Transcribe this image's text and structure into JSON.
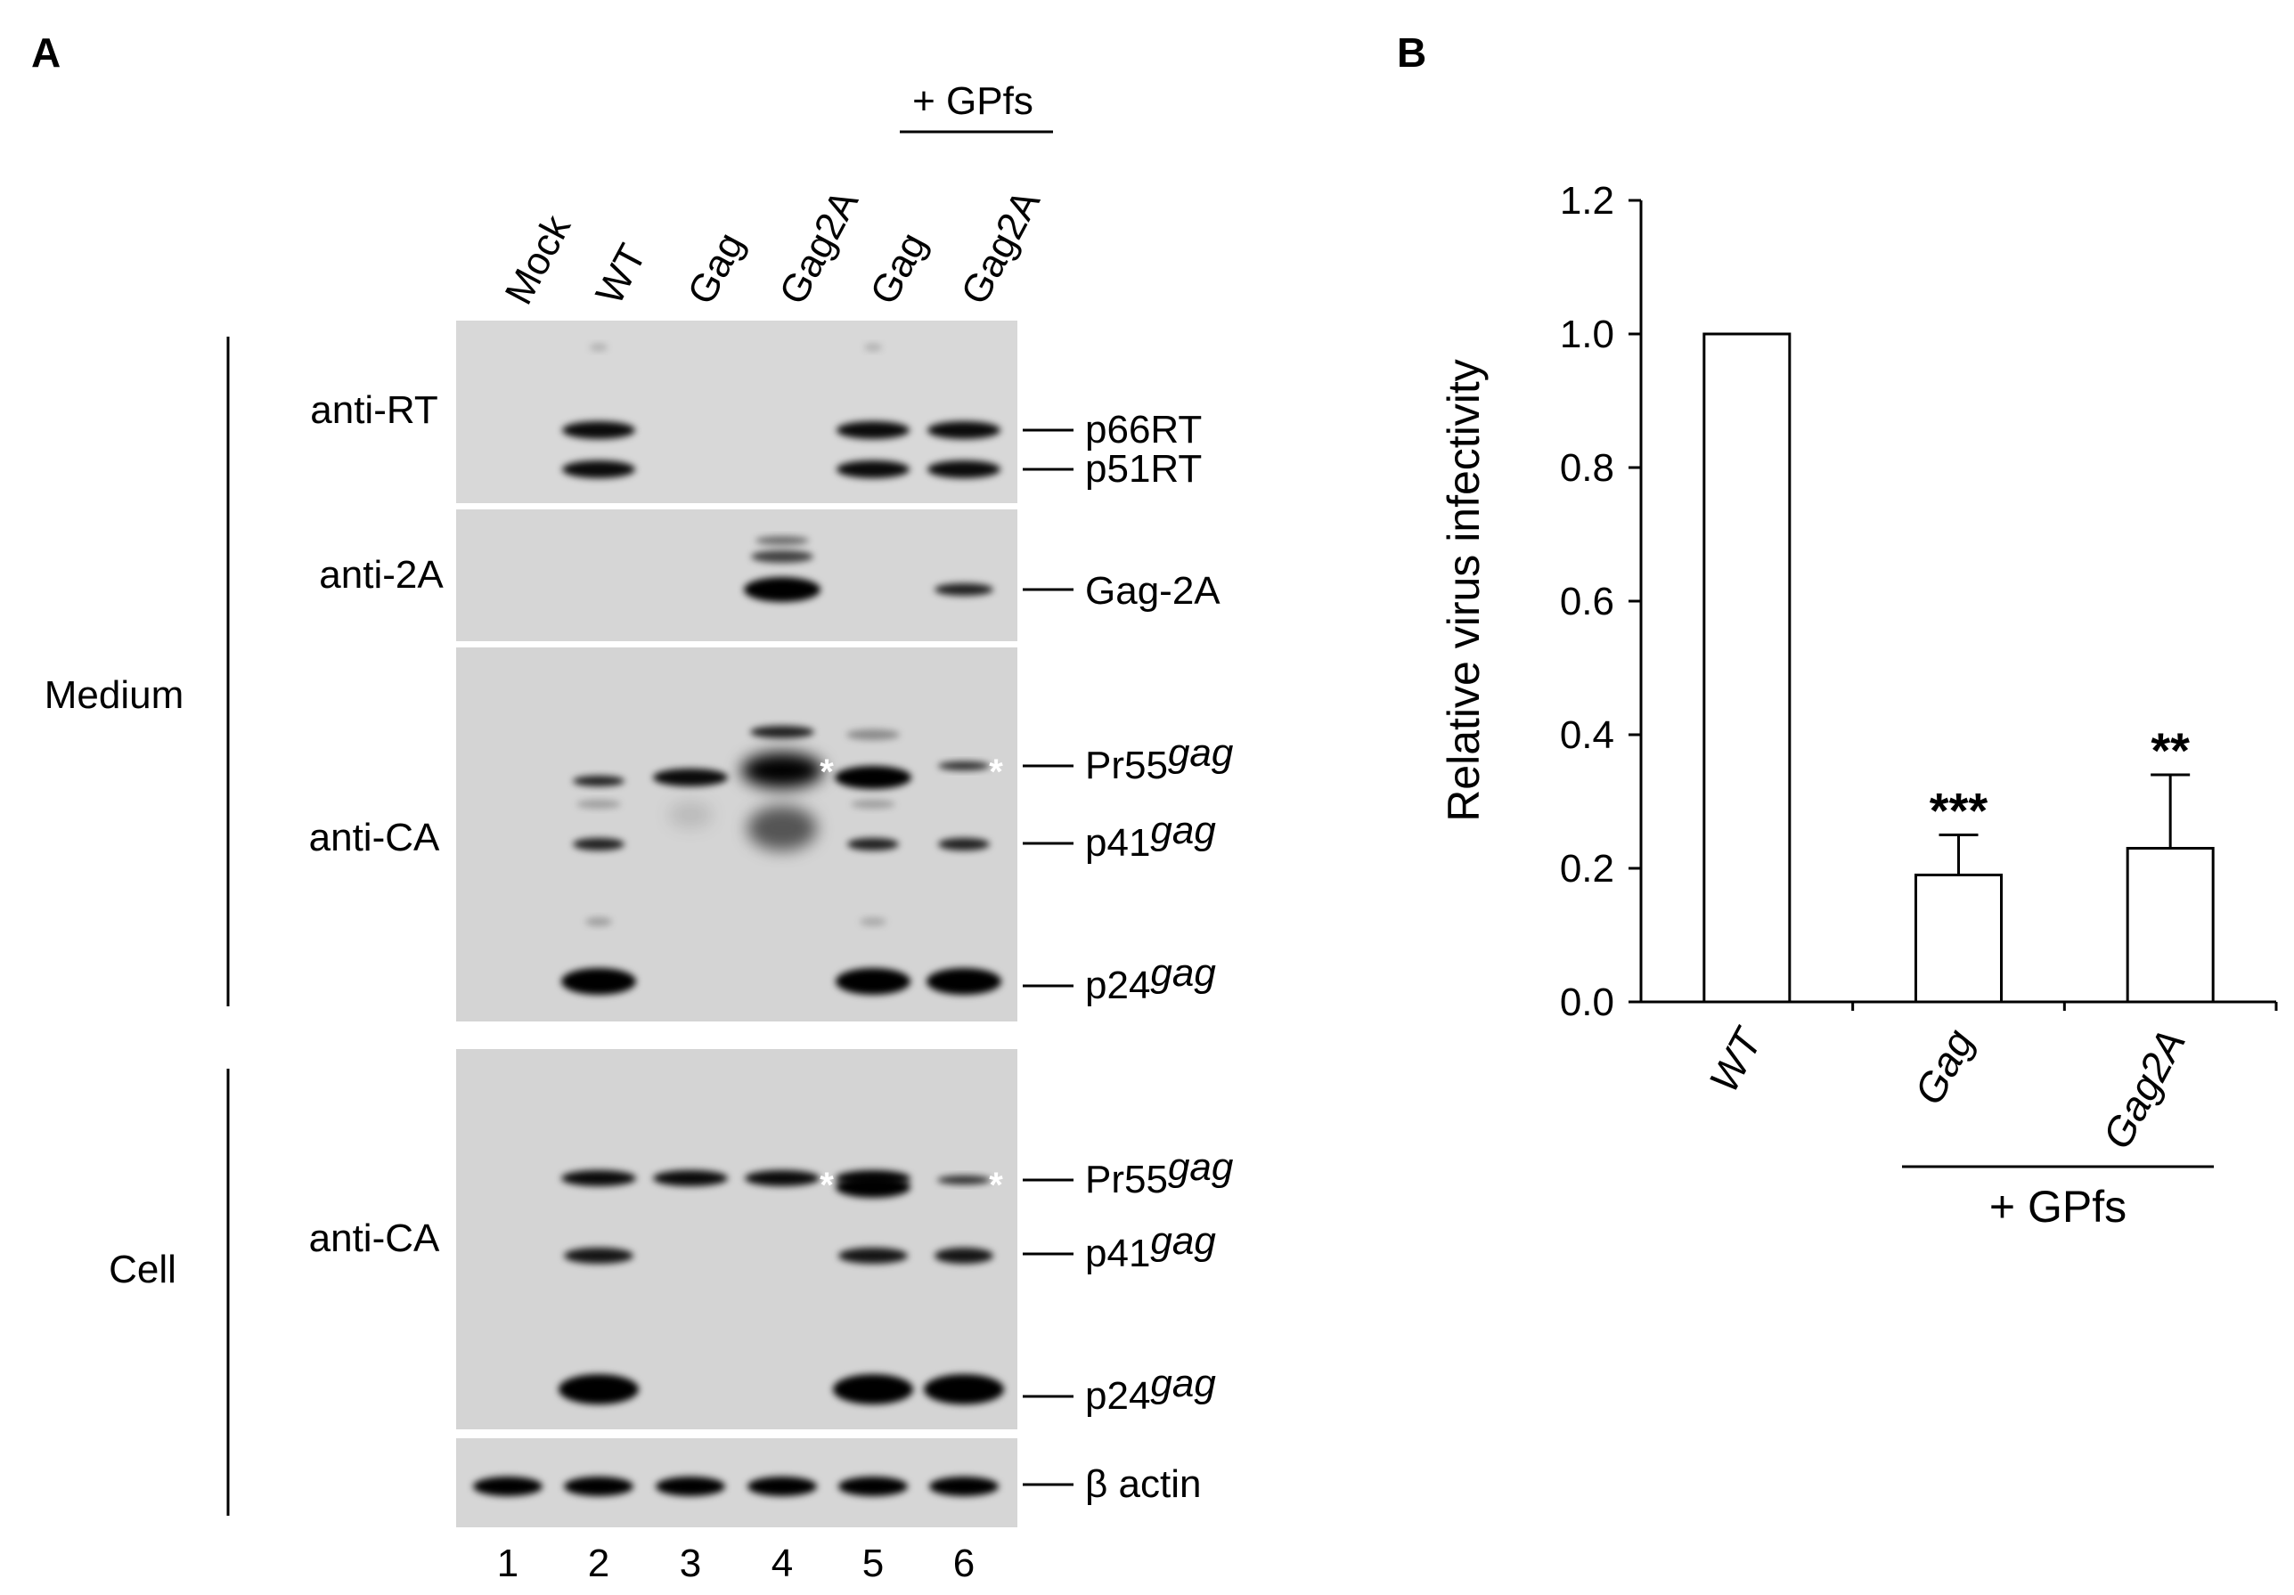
{
  "panels": {
    "a": {
      "label": "A",
      "gpfs_label": "+ GPfs",
      "lane_names": [
        "Mock",
        "WT",
        "Gag",
        "Gag2A",
        "Gag",
        "Gag2A"
      ],
      "lane_numbers": [
        "1",
        "2",
        "3",
        "4",
        "5",
        "6"
      ],
      "group_medium": "Medium",
      "group_cell": "Cell",
      "blots": {
        "rt": {
          "antibody": "anti-RT",
          "markers": [
            {
              "text": "p66RT"
            },
            {
              "text": "p51RT"
            }
          ]
        },
        "twoA": {
          "antibody": "anti-2A",
          "markers": [
            {
              "text": "Gag-2A"
            }
          ]
        },
        "ca_medium": {
          "antibody": "anti-CA",
          "markers": [
            {
              "text": "Pr55",
              "sup": "gag"
            },
            {
              "text": "p41",
              "sup": "gag"
            },
            {
              "text": "p24",
              "sup": "gag"
            }
          ]
        },
        "ca_cell": {
          "antibody": "anti-CA",
          "markers": [
            {
              "text": "Pr55",
              "sup": "gag"
            },
            {
              "text": "p41",
              "sup": "gag"
            },
            {
              "text": "p24",
              "sup": "gag"
            }
          ]
        },
        "actin": {
          "markers": [
            {
              "text": "β actin"
            }
          ]
        }
      },
      "asterisk": "*"
    },
    "b": {
      "label": "B",
      "gpfs_label": "+ GPfs"
    }
  },
  "chart_data": {
    "type": "bar",
    "categories": [
      "WT",
      "Gag",
      "Gag2A"
    ],
    "values": [
      1.0,
      0.19,
      0.23
    ],
    "errors": [
      null,
      0.06,
      0.11
    ],
    "significance": [
      "",
      "***",
      "**"
    ],
    "ylabel": "Relative virus infectivity",
    "ylim": [
      0,
      1.2
    ],
    "yticks": [
      "0.0",
      "0.2",
      "0.4",
      "0.6",
      "0.8",
      "1.0",
      "1.2"
    ],
    "grid": false,
    "bar_fill": "#ffffff",
    "bar_stroke": "#000000"
  }
}
